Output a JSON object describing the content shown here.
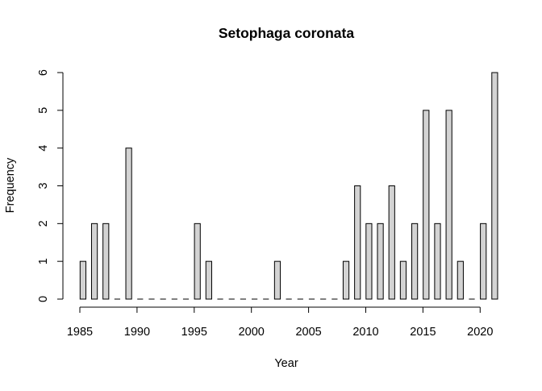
{
  "chart_data": {
    "type": "bar",
    "title": "Setophaga coronata",
    "xlabel": "Year",
    "ylabel": "Frequency",
    "x_ticks": [
      "1985",
      "1990",
      "1995",
      "2000",
      "2005",
      "2010",
      "2015",
      "2020"
    ],
    "y_ticks": [
      "0",
      "1",
      "2",
      "3",
      "4",
      "5",
      "6"
    ],
    "xlim": [
      1985,
      2021
    ],
    "ylim": [
      0,
      6
    ],
    "grid": false,
    "legend": "none",
    "bar_fill": "#d3d3d3",
    "bar_stroke": "#000000",
    "categories": [
      1985,
      1986,
      1987,
      1988,
      1989,
      1990,
      1991,
      1992,
      1993,
      1994,
      1995,
      1996,
      1997,
      1998,
      1999,
      2000,
      2001,
      2002,
      2003,
      2004,
      2005,
      2006,
      2007,
      2008,
      2009,
      2010,
      2011,
      2012,
      2013,
      2014,
      2015,
      2016,
      2017,
      2018,
      2019,
      2020,
      2021
    ],
    "values": [
      1,
      2,
      2,
      0,
      4,
      0,
      0,
      0,
      0,
      0,
      2,
      1,
      0,
      0,
      0,
      0,
      0,
      1,
      0,
      0,
      0,
      0,
      0,
      1,
      3,
      2,
      2,
      3,
      1,
      2,
      5,
      2,
      5,
      1,
      0,
      2,
      6
    ]
  }
}
